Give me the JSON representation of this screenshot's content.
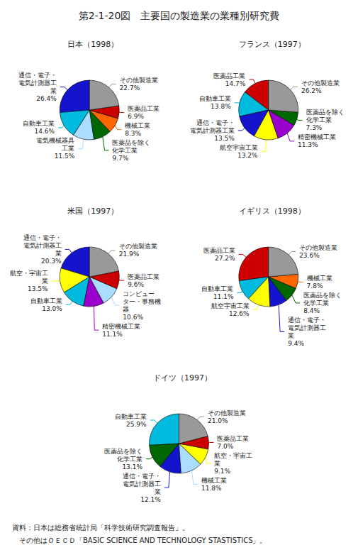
{
  "title": "第2-1-20図　主要国の製造業の業種別研究費",
  "annotations": [
    "資料：日本は総務省統計局「科学技術研究調査報告」。",
    "　その他はＯＥＣＤ「BASIC SCIENCE AND TECHNOLOGY STASTISTICS」。"
  ],
  "chart_data": [
    {
      "type": "pie",
      "title": "日本（1998）",
      "categories": [
        "通信・電子・\n電気計測器工\n業",
        "自動車工業",
        "電気機械器具\n工業",
        "医薬品を除く\n化学工業",
        "機械工業",
        "医薬品工業",
        "その他製造業"
      ],
      "values": [
        26.4,
        14.6,
        11.5,
        9.7,
        8.3,
        6.9,
        22.7
      ],
      "value_labels": [
        "26.4%",
        "14.6%",
        "11.5%",
        "9.7%",
        "8.3%",
        "6.9%",
        "22.7%"
      ],
      "colors": [
        "#1414cc",
        "#00bbdd",
        "#aaddff",
        "#006600",
        "#ff6600",
        "#cc0000",
        "#999999"
      ]
    },
    {
      "type": "pie",
      "title": "フランス（1997）",
      "categories": [
        "医薬品工業",
        "自動車工業",
        "通信・電子・\n電気計測器工業",
        "航空宇宙工業",
        "精密機械工業",
        "医薬品を除く\n化学工業",
        "その他製造業"
      ],
      "values": [
        14.7,
        13.8,
        13.5,
        13.2,
        11.3,
        7.3,
        26.2
      ],
      "value_labels": [
        "14.7%",
        "13.8%",
        "13.5%",
        "13.2%",
        "11.3%",
        "7.3%",
        "26.2%"
      ],
      "colors": [
        "#cc0000",
        "#00bbdd",
        "#1414cc",
        "#ffff00",
        "#9900cc",
        "#006600",
        "#999999"
      ]
    },
    {
      "type": "pie",
      "title": "米国（1997）",
      "categories": [
        "通信・電子・\n電気計測器工\n業",
        "航空・宇宙工\n業",
        "自動車工業",
        "精密機械工業",
        "コンピュー\nター・事務機\n器",
        "医薬品工業",
        "その他製造業"
      ],
      "values": [
        20.3,
        13.5,
        13.0,
        11.1,
        10.6,
        9.6,
        21.9
      ],
      "value_labels": [
        "20.3%",
        "13.5%",
        "13.0%",
        "11.1%",
        "10.6%",
        "9.6%",
        "21.9%"
      ],
      "colors": [
        "#1414cc",
        "#ffff00",
        "#00bbdd",
        "#9900cc",
        "#aaddff",
        "#cc0000",
        "#999999"
      ]
    },
    {
      "type": "pie",
      "title": "イギリス（1998）",
      "categories": [
        "医薬品工業",
        "自動車工業",
        "航空宇宙工業",
        "通信・電子・\n電気計測器工\n業",
        "医薬品を除く\n化学工業",
        "機械工業",
        "その他製造業"
      ],
      "values": [
        27.2,
        11.1,
        12.6,
        9.4,
        8.4,
        7.8,
        23.6
      ],
      "value_labels": [
        "27.2%",
        "11.1%",
        "12.6%",
        "9.4%",
        "8.4%",
        "7.8%",
        "23.6%"
      ],
      "colors": [
        "#cc0000",
        "#00bbdd",
        "#ffff00",
        "#1414cc",
        "#006600",
        "#ff6600",
        "#999999"
      ]
    },
    {
      "type": "pie",
      "title": "ドイツ（1997）",
      "categories": [
        "自動車工業",
        "医薬品を除く\n化学工業",
        "通信・電子・\n電気計測器工\n業",
        "機械工業",
        "航空・宇宙工\n業",
        "医薬品工業",
        "その他製造業"
      ],
      "values": [
        25.9,
        13.1,
        12.1,
        11.8,
        9.1,
        7.0,
        21.0
      ],
      "value_labels": [
        "25.9%",
        "13.1%",
        "12.1%",
        "11.8%",
        "9.1%",
        "7.0%",
        "21.0%"
      ],
      "colors": [
        "#00bbdd",
        "#006600",
        "#1414cc",
        "#aaddff",
        "#ffff00",
        "#cc0000",
        "#999999"
      ]
    }
  ]
}
